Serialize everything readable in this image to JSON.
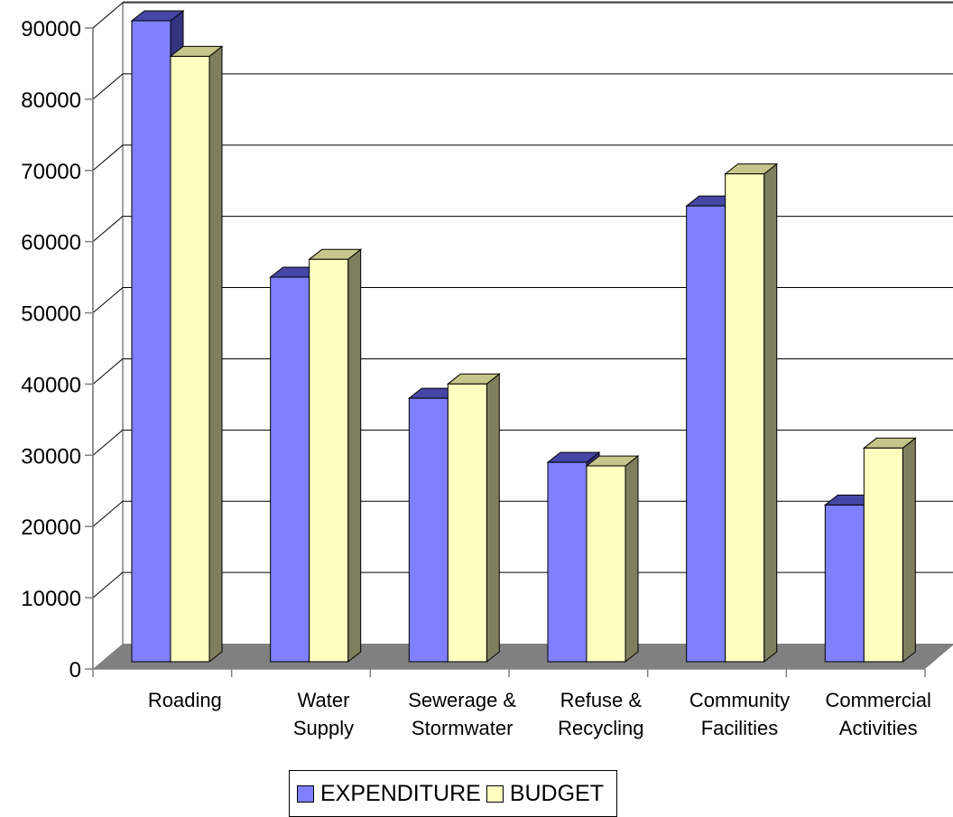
{
  "chart_data": {
    "type": "bar",
    "categories": [
      [
        "Roading"
      ],
      [
        "Water",
        "Supply"
      ],
      [
        "Sewerage &",
        "Stormwater"
      ],
      [
        "Refuse &",
        "Recycling"
      ],
      [
        "Community",
        "Facilities"
      ],
      [
        "Commercial",
        "Activities"
      ]
    ],
    "series": [
      {
        "name": "EXPENDITURE",
        "values": [
          90000,
          54000,
          37000,
          28000,
          64000,
          22000
        ]
      },
      {
        "name": "BUDGET",
        "values": [
          85000,
          56500,
          39000,
          27500,
          68500,
          30000
        ]
      }
    ],
    "yticks": [
      "0",
      "10000",
      "20000",
      "30000",
      "40000",
      "50000",
      "60000",
      "70000",
      "80000",
      "90000"
    ],
    "ylim": [
      0,
      90000
    ],
    "grid": true,
    "legend_position": "bottom",
    "colors": {
      "expenditure": "#8080FF",
      "expenditure_top": "#4646A6",
      "expenditure_side": "#33337F",
      "budget": "#FFFFC0",
      "budget_top": "#C6C68A",
      "budget_side": "#7F7F5E",
      "floor": "#808080",
      "wall": "#ffffff",
      "axis": "#808080",
      "grid": "#000000"
    }
  },
  "legend": {
    "items": [
      {
        "label": "EXPENDITURE",
        "color": "#8080FF"
      },
      {
        "label": "BUDGET",
        "color": "#FFFFC0"
      }
    ]
  }
}
